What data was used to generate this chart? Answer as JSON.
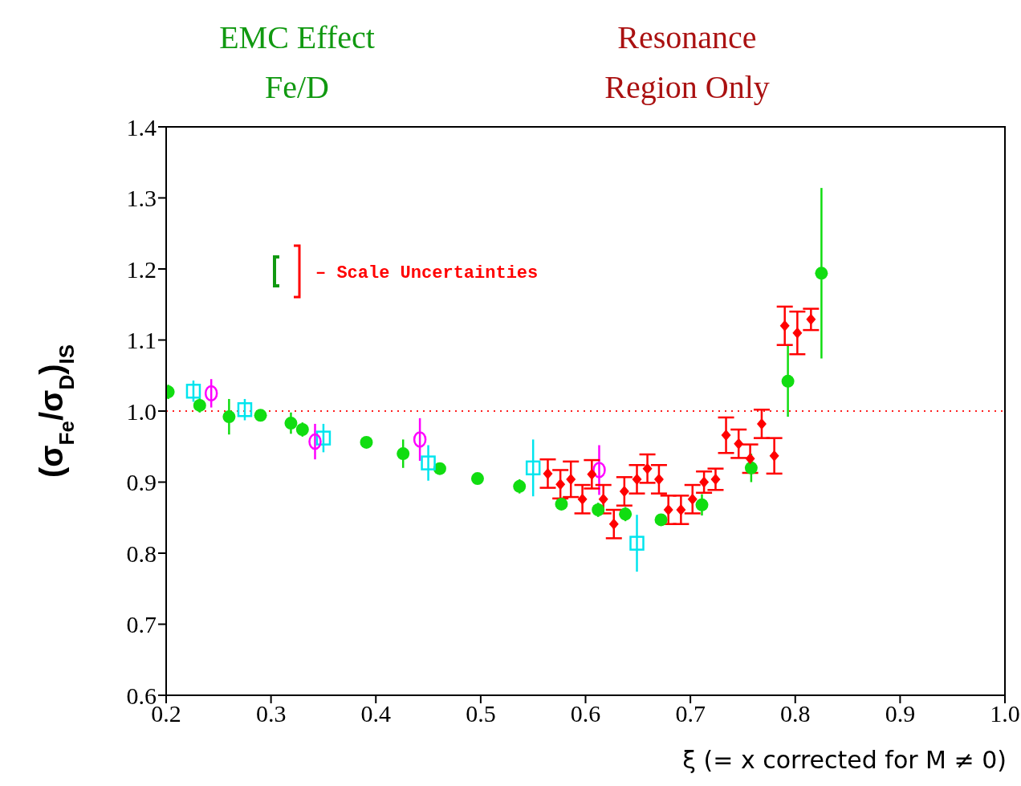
{
  "chart_data": {
    "type": "scatter",
    "title": "EMC Effect\nFe/D",
    "subtitle": "Resonance\nRegion Only",
    "xlabel": "ξ (= x corrected for M ≠ 0)",
    "ylabel": "(σ$_{Fe}$/σ$_{D}$)$_{IS}$",
    "annotations": [
      "– Scale Uncertainties"
    ],
    "xlim": [
      0.2,
      1.0
    ],
    "xticks": [
      0.2,
      0.3,
      0.4,
      0.5,
      0.6,
      0.7,
      0.8,
      0.9,
      {
        "value": 1.0,
        "label": "1.0"
      }
    ],
    "ylim": [
      0.6,
      1.4
    ],
    "yticks": [
      0.6,
      0.7,
      0.8,
      0.9,
      {
        "value": 1.0,
        "label": "1.0"
      },
      1.1,
      1.2,
      1.3,
      1.4
    ],
    "grid": false,
    "legend": false,
    "ref_lines": [
      {
        "axis": "y",
        "value": 1.0,
        "color": "#ff2020",
        "line_style": "dotted"
      }
    ],
    "series": [
      {
        "color": "#11dd11",
        "marker": "circle",
        "x": [
          0.202,
          0.232,
          0.26,
          0.29,
          0.319,
          0.33,
          0.391,
          0.426,
          0.461,
          0.497,
          0.537,
          0.577,
          0.612,
          0.638,
          0.672,
          0.711,
          0.758,
          0.793,
          0.825
        ],
        "values": [
          1.027,
          1.008,
          0.992,
          0.994,
          0.983,
          0.974,
          0.956,
          0.94,
          0.919,
          0.905,
          0.894,
          0.869,
          0.861,
          0.855,
          0.847,
          0.868,
          0.92,
          1.042,
          1.194
        ],
        "errors": [
          0.01,
          0.01,
          0.025,
          0.005,
          0.015,
          0.01,
          0.005,
          0.02,
          0.005,
          0.005,
          0.01,
          0.005,
          0.01,
          0.01,
          0.005,
          0.015,
          0.02,
          0.05,
          0.12
        ]
      },
      {
        "color": "#00e5ee",
        "marker": "square",
        "x": [
          0.226,
          0.275,
          0.35,
          0.45,
          0.55,
          0.649
        ],
        "values": [
          1.028,
          1.002,
          0.962,
          0.927,
          0.92,
          0.814
        ],
        "errors": [
          0.015,
          0.015,
          0.02,
          0.025,
          0.04,
          0.04
        ]
      },
      {
        "color": "#ff00ff",
        "marker": "circle_open",
        "x": [
          0.243,
          0.342,
          0.442,
          0.613
        ],
        "values": [
          1.025,
          0.957,
          0.96,
          0.917
        ],
        "errors": [
          0.02,
          0.025,
          0.03,
          0.035
        ]
      },
      {
        "color": "#ff0000",
        "marker": "diamond",
        "x": [
          0.564,
          0.576,
          0.586,
          0.597,
          0.606,
          0.617,
          0.627,
          0.637,
          0.649,
          0.659,
          0.67,
          0.679,
          0.691,
          0.702,
          0.713,
          0.724,
          0.734,
          0.746,
          0.757,
          0.768,
          0.78,
          0.79,
          0.802,
          0.815
        ],
        "values": [
          0.912,
          0.897,
          0.904,
          0.876,
          0.911,
          0.876,
          0.841,
          0.887,
          0.904,
          0.919,
          0.904,
          0.861,
          0.861,
          0.876,
          0.9,
          0.904,
          0.966,
          0.954,
          0.933,
          0.982,
          0.937,
          1.12,
          1.11,
          1.129
        ],
        "errors": [
          0.02,
          0.02,
          0.025,
          0.02,
          0.02,
          0.02,
          0.02,
          0.02,
          0.02,
          0.02,
          0.02,
          0.02,
          0.02,
          0.02,
          0.015,
          0.015,
          0.025,
          0.02,
          0.02,
          0.02,
          0.025,
          0.027,
          0.03,
          0.015
        ]
      }
    ]
  }
}
